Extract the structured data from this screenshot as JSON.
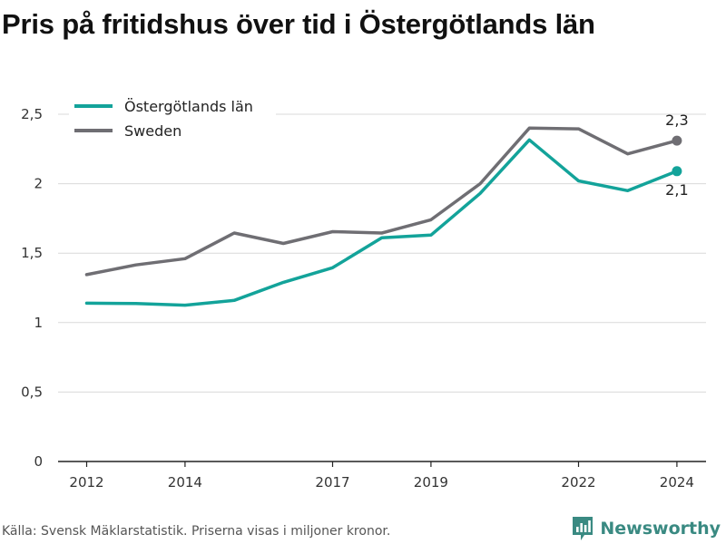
{
  "title": "Pris på fritidshus över tid i Östergötlands län",
  "source_note": "Källa: Svensk Mäklarstatistik. Priserna visas i miljoner kronor.",
  "brand": "Newsworthy",
  "colors": {
    "ostergotland": "#13a39a",
    "sweden": "#6f6e73",
    "grid": "#d9d9d9",
    "axis": "#222222",
    "brand": "#3a8a82"
  },
  "chart_data": {
    "type": "line",
    "x": [
      2012,
      2013,
      2014,
      2015,
      2016,
      2017,
      2018,
      2019,
      2020,
      2021,
      2022,
      2023,
      2024
    ],
    "series": [
      {
        "name": "Östergötlands län",
        "color": "#13a39a",
        "values": [
          1.14,
          1.137,
          1.125,
          1.16,
          1.29,
          1.395,
          1.61,
          1.63,
          1.93,
          2.315,
          2.02,
          1.95,
          2.09
        ],
        "end_label": "2,1"
      },
      {
        "name": "Sweden",
        "color": "#6f6e73",
        "values": [
          1.345,
          1.415,
          1.46,
          1.645,
          1.57,
          1.655,
          1.645,
          1.74,
          2.0,
          2.4,
          2.395,
          2.215,
          2.31
        ],
        "end_label": "2,3"
      }
    ],
    "x_ticks": [
      2012,
      2014,
      2017,
      2019,
      2022,
      2024
    ],
    "x_tick_labels": [
      "2012",
      "2014",
      "2017",
      "2019",
      "2022",
      "2024"
    ],
    "y_ticks": [
      0,
      0.5,
      1,
      1.5,
      2,
      2.5
    ],
    "y_tick_labels": [
      "0",
      "0,5",
      "1",
      "1,5",
      "2",
      "2,5"
    ],
    "xlim": [
      2011.7,
      2024.6
    ],
    "ylim": [
      0,
      2.55
    ],
    "grid": true,
    "legend": "top-left"
  }
}
